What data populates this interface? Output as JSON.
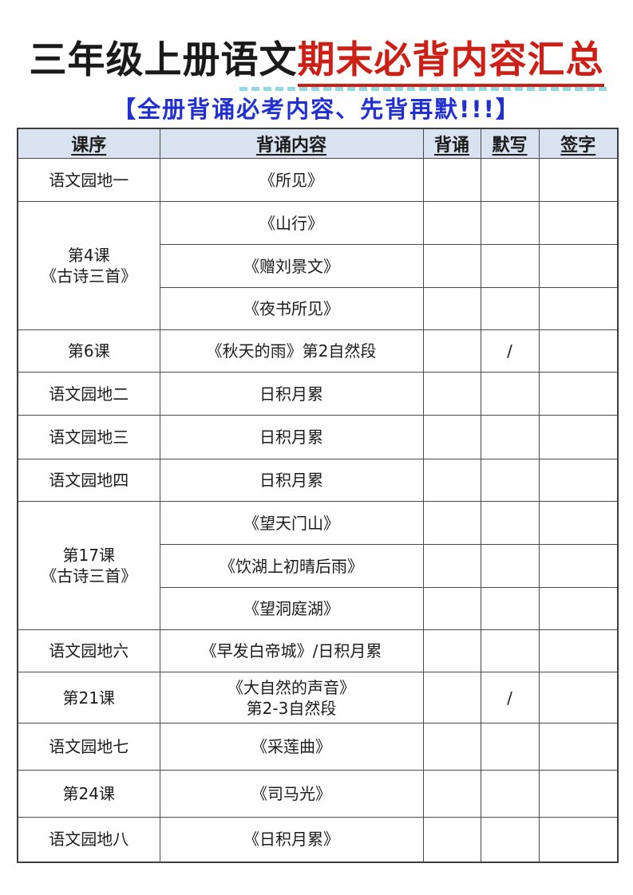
{
  "page": {
    "title_black": "三年级上册语文",
    "title_red": "期末必背内容汇总",
    "subtitle": "【全册背诵必考内容、先背再默!!!】"
  },
  "colors": {
    "title_black": "#1a1a1a",
    "title_red": "#cc1f16",
    "subtitle_blue": "#2230cf",
    "header_bg": "#d9e3f0",
    "border": "#4a4a4a",
    "cyan_artifact": "#7fd4dc"
  },
  "table": {
    "headers": [
      "课序",
      "背诵内容",
      "背诵",
      "默写",
      "签字"
    ],
    "rows": [
      {
        "lesson": [
          "语文园地一"
        ],
        "rowspan": 1,
        "content": [
          "《所见》"
        ],
        "recite": "",
        "dictation": "",
        "signature": ""
      },
      {
        "lesson": [
          "第4课",
          "《古诗三首》"
        ],
        "rowspan": 3,
        "content": [
          "《山行》"
        ],
        "recite": "",
        "dictation": "",
        "signature": ""
      },
      {
        "lesson": null,
        "content": [
          "《赠刘景文》"
        ],
        "recite": "",
        "dictation": "",
        "signature": ""
      },
      {
        "lesson": null,
        "content": [
          "《夜书所见》"
        ],
        "recite": "",
        "dictation": "",
        "signature": ""
      },
      {
        "lesson": [
          "第6课"
        ],
        "rowspan": 1,
        "content": [
          "《秋天的雨》第2自然段"
        ],
        "recite": "",
        "dictation": "/",
        "signature": ""
      },
      {
        "lesson": [
          "语文园地二"
        ],
        "rowspan": 1,
        "content": [
          "日积月累"
        ],
        "recite": "",
        "dictation": "",
        "signature": ""
      },
      {
        "lesson": [
          "语文园地三"
        ],
        "rowspan": 1,
        "content": [
          "日积月累"
        ],
        "recite": "",
        "dictation": "",
        "signature": ""
      },
      {
        "lesson": [
          "语文园地四"
        ],
        "rowspan": 1,
        "content": [
          "日积月累"
        ],
        "recite": "",
        "dictation": "",
        "signature": ""
      },
      {
        "lesson": [
          "第17课",
          "《古诗三首》"
        ],
        "rowspan": 3,
        "content": [
          "《望天门山》"
        ],
        "recite": "",
        "dictation": "",
        "signature": ""
      },
      {
        "lesson": null,
        "content": [
          "《饮湖上初晴后雨》"
        ],
        "recite": "",
        "dictation": "",
        "signature": ""
      },
      {
        "lesson": null,
        "content": [
          "《望洞庭湖》"
        ],
        "recite": "",
        "dictation": "",
        "signature": ""
      },
      {
        "lesson": [
          "语文园地六"
        ],
        "rowspan": 1,
        "content": [
          "《早发白帝城》/日积月累"
        ],
        "recite": "",
        "dictation": "",
        "signature": ""
      },
      {
        "lesson": [
          "第21课"
        ],
        "rowspan": 1,
        "content": [
          "《大自然的声音》",
          "第2-3自然段"
        ],
        "recite": "",
        "dictation": "/",
        "signature": ""
      },
      {
        "lesson": [
          "语文园地七"
        ],
        "rowspan": 1,
        "content": [
          "《采莲曲》"
        ],
        "recite": "",
        "dictation": "",
        "signature": ""
      },
      {
        "lesson": [
          "第24课"
        ],
        "rowspan": 1,
        "content": [
          "《司马光》"
        ],
        "recite": "",
        "dictation": "",
        "signature": ""
      },
      {
        "lesson": [
          "语文园地八"
        ],
        "rowspan": 1,
        "content": [
          "《日积月累》"
        ],
        "recite": "",
        "dictation": "",
        "signature": ""
      }
    ]
  }
}
